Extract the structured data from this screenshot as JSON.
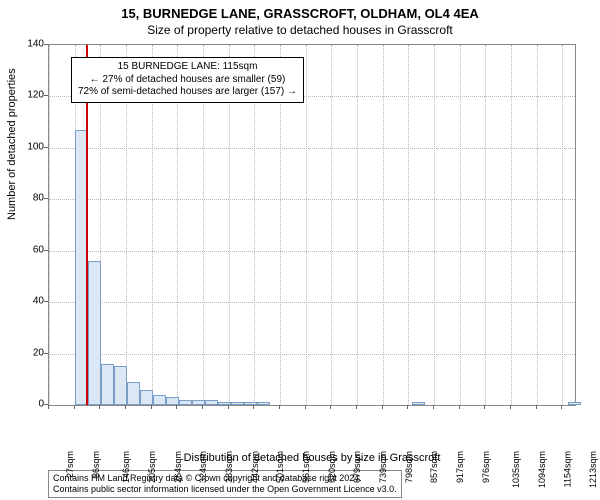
{
  "title": "15, BURNEDGE LANE, GRASSCROFT, OLDHAM, OL4 4EA",
  "subtitle": "Size of property relative to detached houses in Grasscroft",
  "chart": {
    "type": "histogram",
    "data_x_start": 27,
    "data_x_end": 1243,
    "ylim": [
      0,
      140
    ],
    "yticks": [
      0,
      20,
      40,
      60,
      80,
      100,
      120,
      140
    ],
    "xtick_values": [
      27,
      86,
      146,
      205,
      264,
      324,
      383,
      442,
      501,
      561,
      620,
      679,
      739,
      798,
      857,
      917,
      976,
      1035,
      1094,
      1154,
      1213
    ],
    "xtick_labels": [
      "27sqm",
      "86sqm",
      "146sqm",
      "205sqm",
      "264sqm",
      "324sqm",
      "383sqm",
      "442sqm",
      "501sqm",
      "561sqm",
      "620sqm",
      "679sqm",
      "739sqm",
      "798sqm",
      "857sqm",
      "917sqm",
      "976sqm",
      "1035sqm",
      "1094sqm",
      "1154sqm",
      "1213sqm"
    ],
    "bar_width_data": 30,
    "values": [
      0,
      0,
      107,
      56,
      16,
      15,
      9,
      6,
      4,
      3,
      2,
      2,
      2,
      1,
      1,
      1,
      1,
      0,
      0,
      0,
      0,
      0,
      0,
      0,
      0,
      0,
      0,
      0,
      1,
      0,
      0,
      0,
      0,
      0,
      0,
      0,
      0,
      0,
      0,
      0,
      1
    ],
    "bar_fill": "#dbe7f5",
    "bar_stroke": "#7a9ec7",
    "grid_color": "#bbbbbb",
    "axis_color": "#888888",
    "background_color": "#ffffff",
    "ylabel": "Number of detached properties",
    "xlabel": "Distribution of detached houses by size in Grasscroft",
    "ref_line_data_x": 115,
    "ref_line_color": "#cc0000",
    "annotation": {
      "line1": "15 BURNEDGE LANE: 115sqm",
      "line2": "← 27% of detached houses are smaller (59)",
      "line3": "72% of semi-detached houses are larger (157) →",
      "fontsize": 10
    },
    "label_fontsize": 11,
    "tick_fontsize": 10
  },
  "footer": {
    "line1": "Contains HM Land Registry data © Crown copyright and database right 2024.",
    "line2": "Contains public sector information licensed under the Open Government Licence v3.0."
  }
}
